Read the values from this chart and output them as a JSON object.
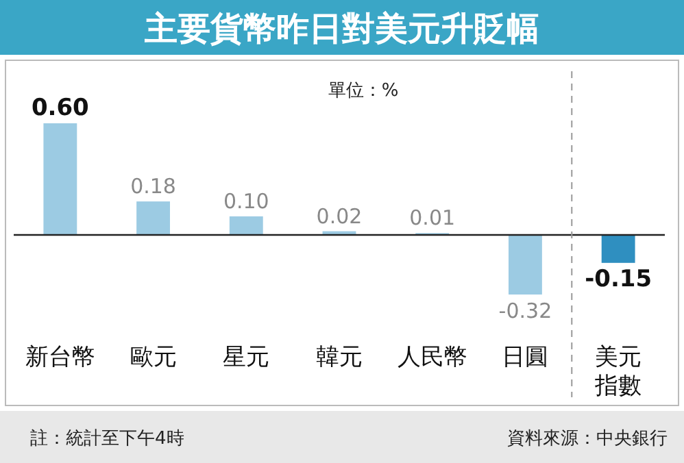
{
  "chart_data": {
    "type": "bar",
    "title": "主要貨幣昨日對美元升貶幅",
    "subtitle": "單位：%",
    "categories": [
      "新台幣",
      "歐元",
      "星元",
      "韓元",
      "人民幣",
      "日圓",
      "美元指數"
    ],
    "values": [
      0.6,
      0.18,
      0.1,
      0.02,
      0.01,
      -0.32,
      -0.15
    ],
    "colors": [
      "#9ccbe3",
      "#9ccbe3",
      "#9ccbe3",
      "#9ccbe3",
      "#9ccbe3",
      "#9ccbe3",
      "#2f8fc0"
    ],
    "value_labels": [
      "0.60",
      "0.18",
      "0.10",
      "0.02",
      "0.01",
      "-0.32",
      "-0.15"
    ],
    "annotations": [
      "註：統計至下午4時",
      "資料來源：中央銀行"
    ]
  }
}
